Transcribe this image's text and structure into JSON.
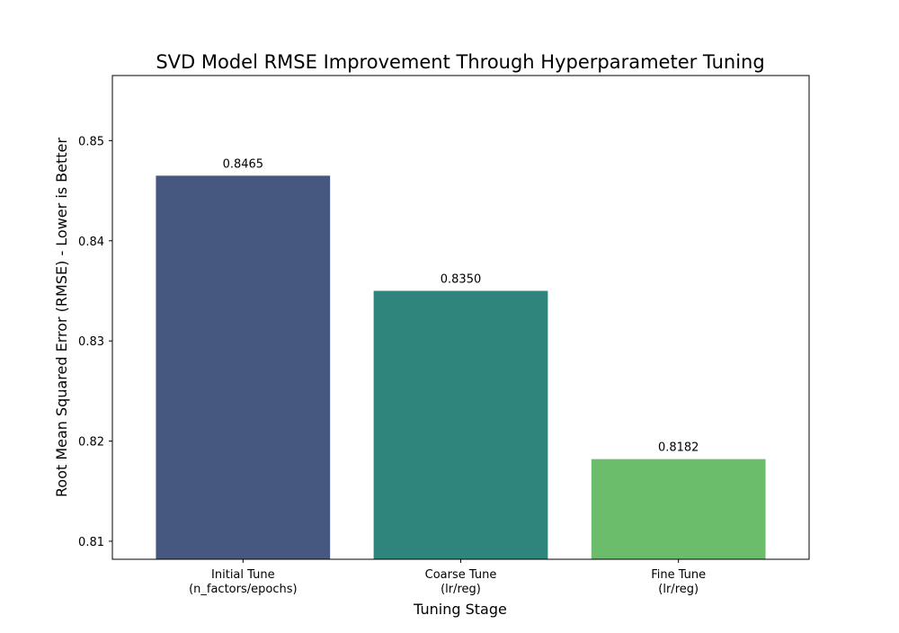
{
  "chart_data": {
    "type": "bar",
    "title": "SVD Model RMSE Improvement Through Hyperparameter Tuning",
    "xlabel": "Tuning Stage",
    "ylabel": "Root Mean Squared Error (RMSE) - Lower is Better",
    "categories": [
      [
        "Initial Tune",
        "(n_factors/epochs)"
      ],
      [
        "Coarse Tune",
        "(lr/reg)"
      ],
      [
        "Fine Tune",
        "(lr/reg)"
      ]
    ],
    "values": [
      0.8465,
      0.835,
      0.8182
    ],
    "value_labels": [
      "0.8465",
      "0.8350",
      "0.8182"
    ],
    "colors": [
      "#46587f",
      "#2f847c",
      "#6bbd6b"
    ],
    "ylim": [
      0.8082,
      0.8565
    ],
    "yticks": [
      0.81,
      0.82,
      0.83,
      0.84,
      0.85
    ],
    "ytick_labels": [
      "0.81",
      "0.82",
      "0.83",
      "0.84",
      "0.85"
    ],
    "grid": false,
    "legend": "none"
  }
}
